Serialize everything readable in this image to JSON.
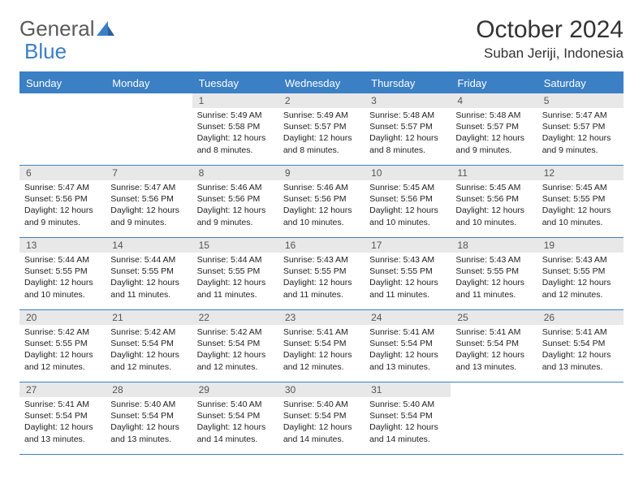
{
  "logo": {
    "text1": "General",
    "text2": "Blue"
  },
  "title": "October 2024",
  "location": "Suban Jeriji, Indonesia",
  "colors": {
    "accent": "#3b7fc4",
    "daynum_bg": "#e8e8e8",
    "text": "#333333",
    "info_text": "#222222"
  },
  "day_names": [
    "Sunday",
    "Monday",
    "Tuesday",
    "Wednesday",
    "Thursday",
    "Friday",
    "Saturday"
  ],
  "weeks": [
    [
      {
        "n": "",
        "sunrise": "",
        "sunset": "",
        "daylight": ""
      },
      {
        "n": "",
        "sunrise": "",
        "sunset": "",
        "daylight": ""
      },
      {
        "n": "1",
        "sunrise": "Sunrise: 5:49 AM",
        "sunset": "Sunset: 5:58 PM",
        "daylight": "Daylight: 12 hours and 8 minutes."
      },
      {
        "n": "2",
        "sunrise": "Sunrise: 5:49 AM",
        "sunset": "Sunset: 5:57 PM",
        "daylight": "Daylight: 12 hours and 8 minutes."
      },
      {
        "n": "3",
        "sunrise": "Sunrise: 5:48 AM",
        "sunset": "Sunset: 5:57 PM",
        "daylight": "Daylight: 12 hours and 8 minutes."
      },
      {
        "n": "4",
        "sunrise": "Sunrise: 5:48 AM",
        "sunset": "Sunset: 5:57 PM",
        "daylight": "Daylight: 12 hours and 9 minutes."
      },
      {
        "n": "5",
        "sunrise": "Sunrise: 5:47 AM",
        "sunset": "Sunset: 5:57 PM",
        "daylight": "Daylight: 12 hours and 9 minutes."
      }
    ],
    [
      {
        "n": "6",
        "sunrise": "Sunrise: 5:47 AM",
        "sunset": "Sunset: 5:56 PM",
        "daylight": "Daylight: 12 hours and 9 minutes."
      },
      {
        "n": "7",
        "sunrise": "Sunrise: 5:47 AM",
        "sunset": "Sunset: 5:56 PM",
        "daylight": "Daylight: 12 hours and 9 minutes."
      },
      {
        "n": "8",
        "sunrise": "Sunrise: 5:46 AM",
        "sunset": "Sunset: 5:56 PM",
        "daylight": "Daylight: 12 hours and 9 minutes."
      },
      {
        "n": "9",
        "sunrise": "Sunrise: 5:46 AM",
        "sunset": "Sunset: 5:56 PM",
        "daylight": "Daylight: 12 hours and 10 minutes."
      },
      {
        "n": "10",
        "sunrise": "Sunrise: 5:45 AM",
        "sunset": "Sunset: 5:56 PM",
        "daylight": "Daylight: 12 hours and 10 minutes."
      },
      {
        "n": "11",
        "sunrise": "Sunrise: 5:45 AM",
        "sunset": "Sunset: 5:56 PM",
        "daylight": "Daylight: 12 hours and 10 minutes."
      },
      {
        "n": "12",
        "sunrise": "Sunrise: 5:45 AM",
        "sunset": "Sunset: 5:55 PM",
        "daylight": "Daylight: 12 hours and 10 minutes."
      }
    ],
    [
      {
        "n": "13",
        "sunrise": "Sunrise: 5:44 AM",
        "sunset": "Sunset: 5:55 PM",
        "daylight": "Daylight: 12 hours and 10 minutes."
      },
      {
        "n": "14",
        "sunrise": "Sunrise: 5:44 AM",
        "sunset": "Sunset: 5:55 PM",
        "daylight": "Daylight: 12 hours and 11 minutes."
      },
      {
        "n": "15",
        "sunrise": "Sunrise: 5:44 AM",
        "sunset": "Sunset: 5:55 PM",
        "daylight": "Daylight: 12 hours and 11 minutes."
      },
      {
        "n": "16",
        "sunrise": "Sunrise: 5:43 AM",
        "sunset": "Sunset: 5:55 PM",
        "daylight": "Daylight: 12 hours and 11 minutes."
      },
      {
        "n": "17",
        "sunrise": "Sunrise: 5:43 AM",
        "sunset": "Sunset: 5:55 PM",
        "daylight": "Daylight: 12 hours and 11 minutes."
      },
      {
        "n": "18",
        "sunrise": "Sunrise: 5:43 AM",
        "sunset": "Sunset: 5:55 PM",
        "daylight": "Daylight: 12 hours and 11 minutes."
      },
      {
        "n": "19",
        "sunrise": "Sunrise: 5:43 AM",
        "sunset": "Sunset: 5:55 PM",
        "daylight": "Daylight: 12 hours and 12 minutes."
      }
    ],
    [
      {
        "n": "20",
        "sunrise": "Sunrise: 5:42 AM",
        "sunset": "Sunset: 5:55 PM",
        "daylight": "Daylight: 12 hours and 12 minutes."
      },
      {
        "n": "21",
        "sunrise": "Sunrise: 5:42 AM",
        "sunset": "Sunset: 5:54 PM",
        "daylight": "Daylight: 12 hours and 12 minutes."
      },
      {
        "n": "22",
        "sunrise": "Sunrise: 5:42 AM",
        "sunset": "Sunset: 5:54 PM",
        "daylight": "Daylight: 12 hours and 12 minutes."
      },
      {
        "n": "23",
        "sunrise": "Sunrise: 5:41 AM",
        "sunset": "Sunset: 5:54 PM",
        "daylight": "Daylight: 12 hours and 12 minutes."
      },
      {
        "n": "24",
        "sunrise": "Sunrise: 5:41 AM",
        "sunset": "Sunset: 5:54 PM",
        "daylight": "Daylight: 12 hours and 13 minutes."
      },
      {
        "n": "25",
        "sunrise": "Sunrise: 5:41 AM",
        "sunset": "Sunset: 5:54 PM",
        "daylight": "Daylight: 12 hours and 13 minutes."
      },
      {
        "n": "26",
        "sunrise": "Sunrise: 5:41 AM",
        "sunset": "Sunset: 5:54 PM",
        "daylight": "Daylight: 12 hours and 13 minutes."
      }
    ],
    [
      {
        "n": "27",
        "sunrise": "Sunrise: 5:41 AM",
        "sunset": "Sunset: 5:54 PM",
        "daylight": "Daylight: 12 hours and 13 minutes."
      },
      {
        "n": "28",
        "sunrise": "Sunrise: 5:40 AM",
        "sunset": "Sunset: 5:54 PM",
        "daylight": "Daylight: 12 hours and 13 minutes."
      },
      {
        "n": "29",
        "sunrise": "Sunrise: 5:40 AM",
        "sunset": "Sunset: 5:54 PM",
        "daylight": "Daylight: 12 hours and 14 minutes."
      },
      {
        "n": "30",
        "sunrise": "Sunrise: 5:40 AM",
        "sunset": "Sunset: 5:54 PM",
        "daylight": "Daylight: 12 hours and 14 minutes."
      },
      {
        "n": "31",
        "sunrise": "Sunrise: 5:40 AM",
        "sunset": "Sunset: 5:54 PM",
        "daylight": "Daylight: 12 hours and 14 minutes."
      },
      {
        "n": "",
        "sunrise": "",
        "sunset": "",
        "daylight": ""
      },
      {
        "n": "",
        "sunrise": "",
        "sunset": "",
        "daylight": ""
      }
    ]
  ]
}
